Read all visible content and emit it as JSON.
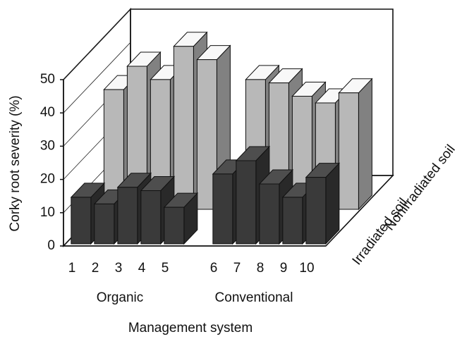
{
  "chart_data": {
    "type": "bar3d",
    "y_label": "Corky root severity (%)",
    "x_label": "Management system",
    "group_labels": [
      "Organic",
      "Conventional"
    ],
    "categories": [
      "1",
      "2",
      "3",
      "4",
      "5",
      "6",
      "7",
      "8",
      "9",
      "10"
    ],
    "series": [
      {
        "name": "Irradiated soil",
        "color": "#3a3a3a",
        "values": [
          14,
          12,
          17,
          16,
          11,
          21,
          25,
          18,
          14,
          20
        ]
      },
      {
        "name": "Nonirradiated soil",
        "color": "#b8b8b8",
        "values": [
          36,
          43,
          39,
          49,
          45,
          39,
          38,
          34,
          32,
          35
        ]
      }
    ],
    "ylim": [
      0,
      50
    ],
    "yticks": [
      0,
      10,
      20,
      30,
      40,
      50
    ],
    "grid": true
  }
}
